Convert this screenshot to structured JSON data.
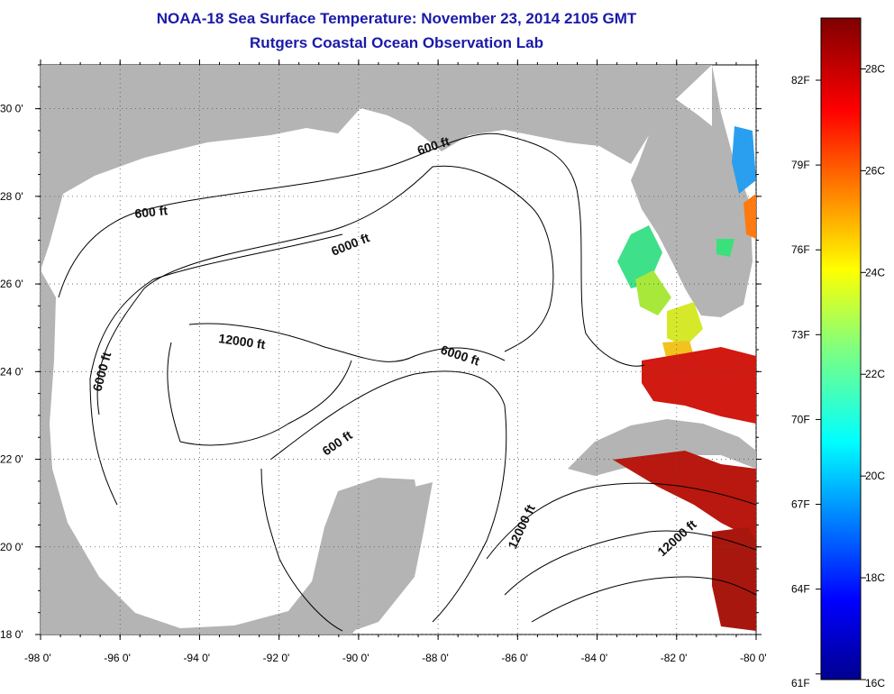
{
  "title": {
    "line1": "NOAA-18 Sea Surface Temperature:  November 23, 2014 2105 GMT",
    "line2": "Rutgers Coastal Ocean Observation Lab"
  },
  "map": {
    "region": "Gulf of Mexico",
    "lon_range": [
      -98,
      -80
    ],
    "lat_range": [
      18,
      31
    ],
    "lon_ticks": [
      "-98 0'",
      "-96 0'",
      "-94 0'",
      "-92 0'",
      "-90 0'",
      "-88 0'",
      "-86 0'",
      "-84 0'",
      "-82 0'",
      "-80 0'"
    ],
    "lat_ticks": [
      "18 0'",
      "20 0'",
      "22 0'",
      "24 0'",
      "26 0'",
      "28 0'",
      "30 0'"
    ],
    "contour_labels": [
      "600 ft",
      "600 ft",
      "6000 ft",
      "6000 ft",
      "6000 ft",
      "12000 ft",
      "600 ft",
      "12000 ft",
      "12000 ft"
    ],
    "colors": {
      "land": "#b4b4b4",
      "water": "#ffffff",
      "title": "#1a1aa8"
    }
  },
  "colorbar": {
    "fahrenheit_labels": [
      "82F",
      "79F",
      "76F",
      "73F",
      "70F",
      "67F",
      "64F",
      "61F"
    ],
    "celsius_labels": [
      "28C",
      "26C",
      "24C",
      "22C",
      "20C",
      "18C",
      "16C"
    ],
    "min_c": 16,
    "max_c": 29
  }
}
